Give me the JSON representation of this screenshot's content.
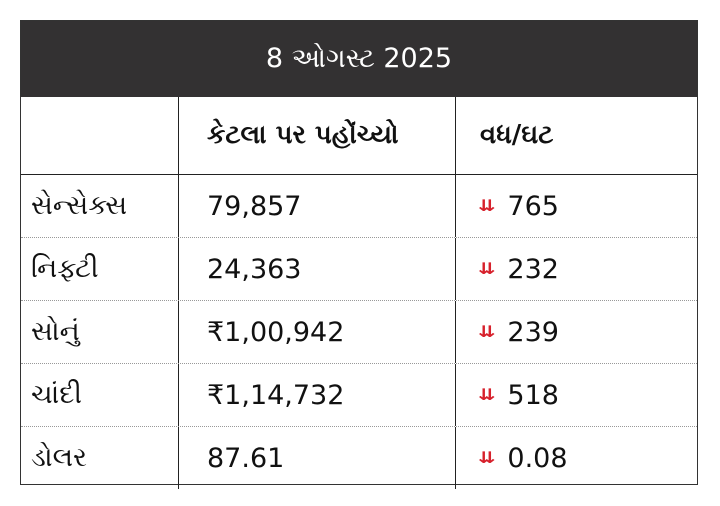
{
  "title": "8 ઓગસ્ટ 2025",
  "headers": [
    "",
    "કેટલા પર પહોંચ્યો",
    "વધ/ઘટ"
  ],
  "rows": [
    {
      "name": "સેન્સેક્સ",
      "value": "79,857",
      "change": "765",
      "direction": "down"
    },
    {
      "name": "નિફ્ટી",
      "value": "24,363",
      "change": "232",
      "direction": "down"
    },
    {
      "name": "સોનું",
      "value": "₹1,00,942",
      "change": "239",
      "direction": "down"
    },
    {
      "name": "ચાંદી",
      "value": "₹1,14,732",
      "change": "518",
      "direction": "down"
    },
    {
      "name": "ડોલર",
      "value": "87.61",
      "change": "0.08",
      "direction": "down"
    }
  ],
  "colors": {
    "header_bg": "#333132",
    "down_arrow": "#d7212c"
  },
  "icons": {
    "down": "double-chevron-down-icon"
  }
}
